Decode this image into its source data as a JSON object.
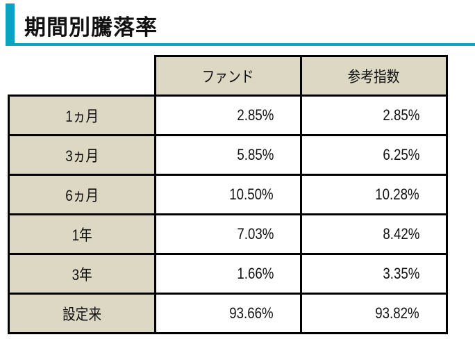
{
  "title": "期間別騰落率",
  "colors": {
    "accent": "#0aa3c2",
    "header_bg": "#dcd8c4"
  },
  "table": {
    "headers": [
      "ファンド",
      "参考指数"
    ],
    "rows": [
      {
        "period": "1ヵ月",
        "fund": "2.85%",
        "index": "2.85%"
      },
      {
        "period": "3ヵ月",
        "fund": "5.85%",
        "index": "6.25%"
      },
      {
        "period": "6ヵ月",
        "fund": "10.50%",
        "index": "10.28%"
      },
      {
        "period": "1年",
        "fund": "7.03%",
        "index": "8.42%"
      },
      {
        "period": "3年",
        "fund": "1.66%",
        "index": "3.35%"
      },
      {
        "period": "設定来",
        "fund": "93.66%",
        "index": "93.82%"
      }
    ]
  }
}
